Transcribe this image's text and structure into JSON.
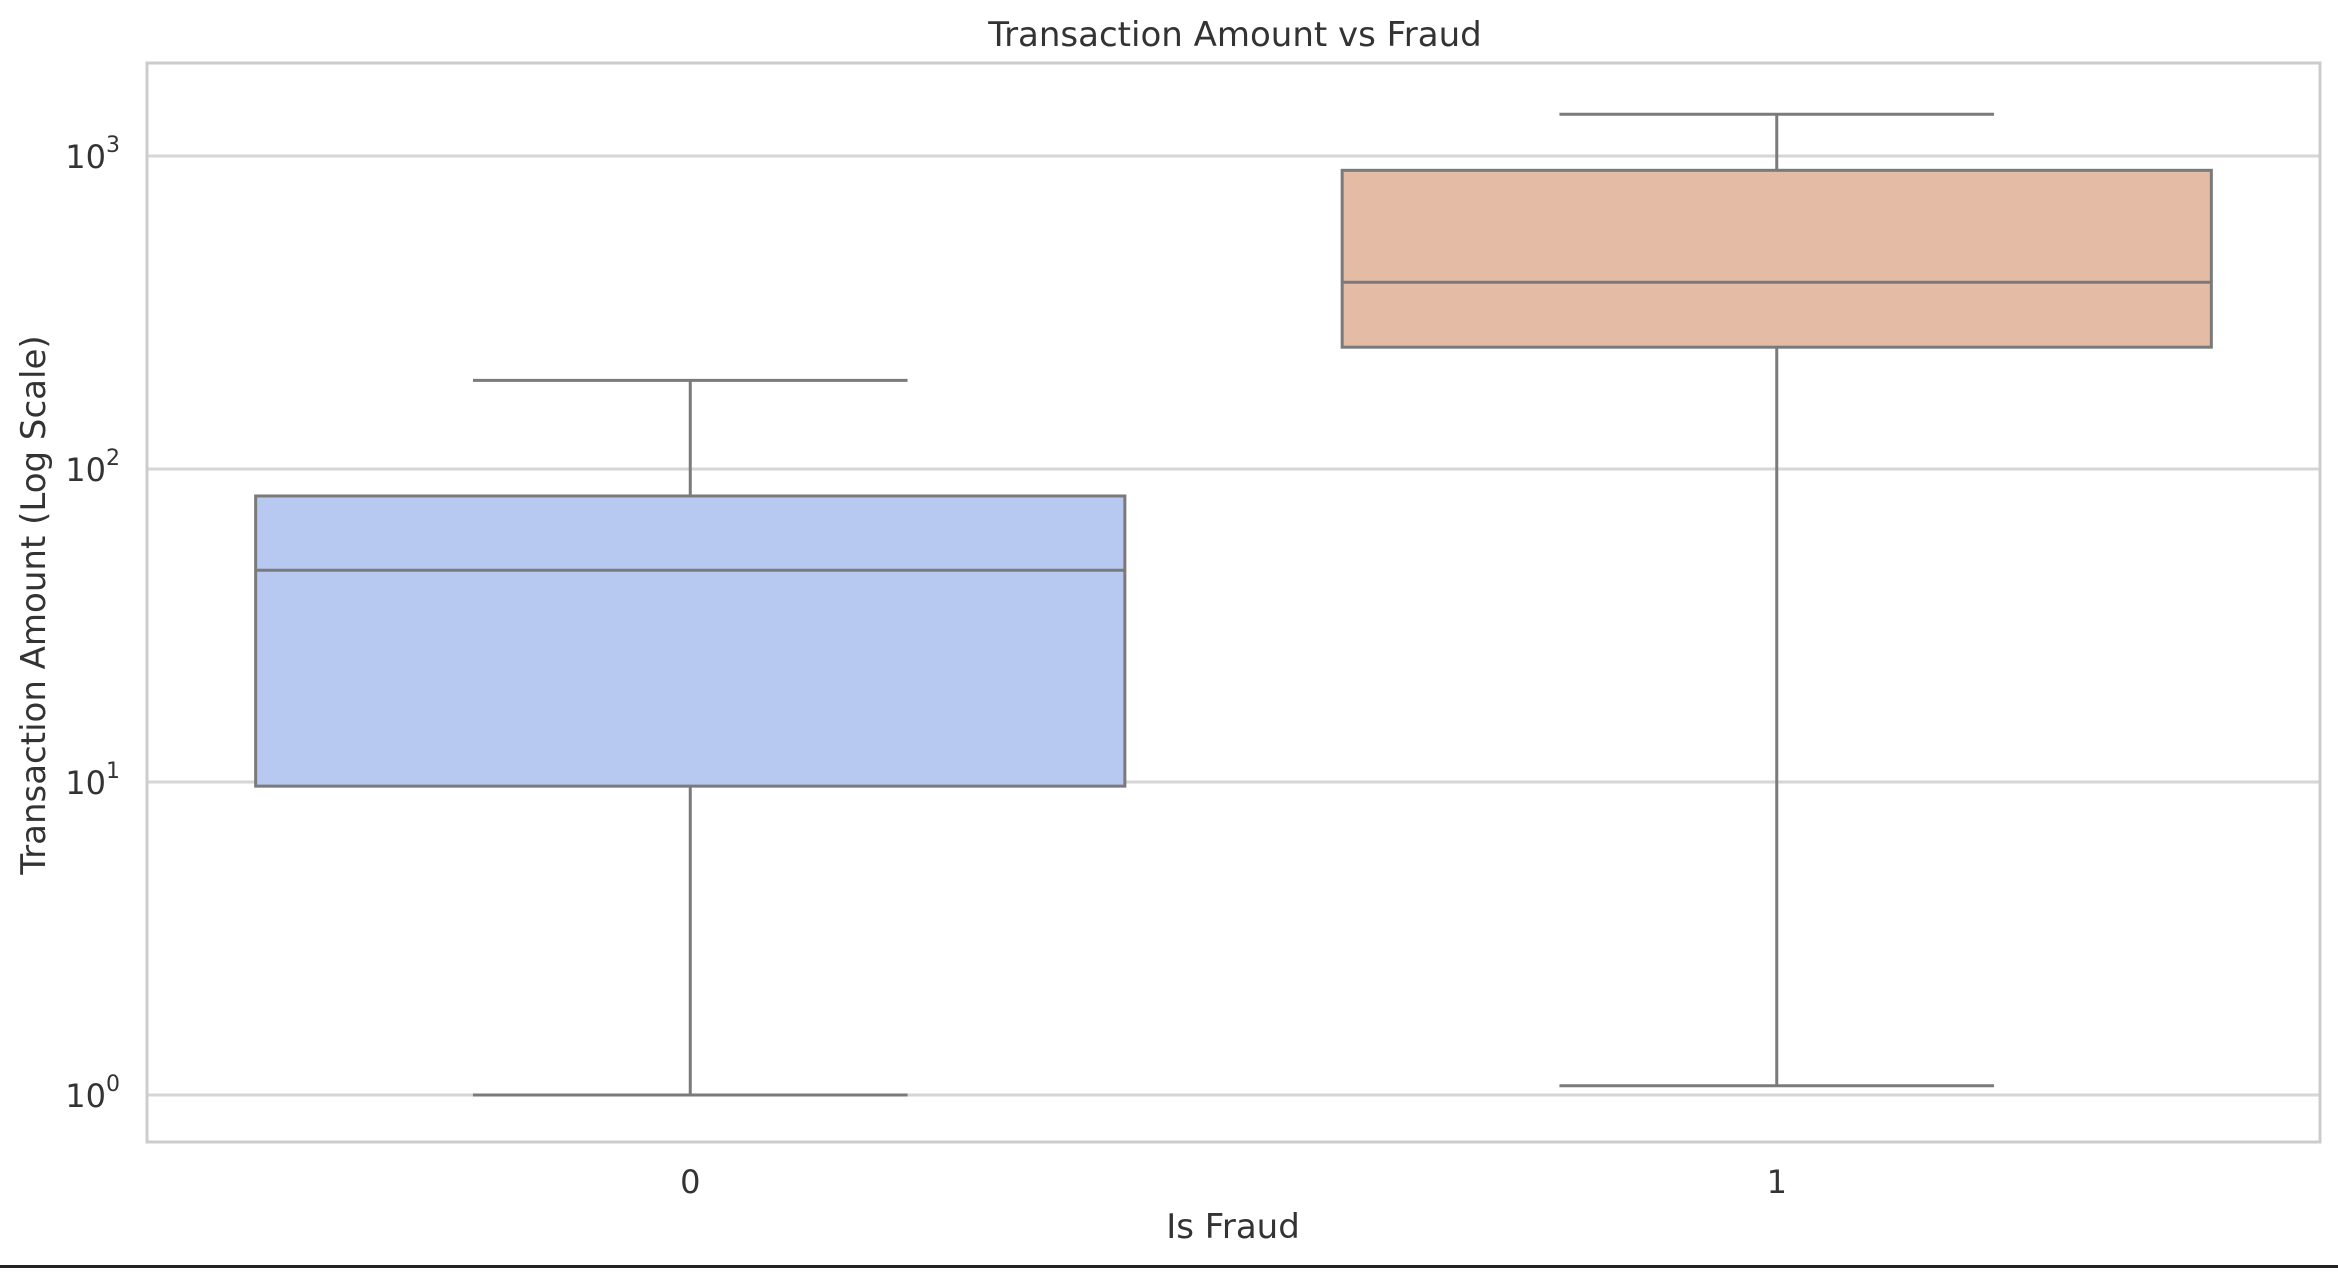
{
  "chart_data": {
    "type": "box",
    "title": "Transaction Amount vs Fraud",
    "xlabel": "Is Fraud",
    "ylabel": "Transaction Amount (Log Scale)",
    "yscale": "log",
    "ylim": [
      0.7,
      2000
    ],
    "yticks": [
      {
        "value": 1,
        "base": "10",
        "exp": "0"
      },
      {
        "value": 10,
        "base": "10",
        "exp": "1"
      },
      {
        "value": 100,
        "base": "10",
        "exp": "2"
      },
      {
        "value": 1000,
        "base": "10",
        "exp": "3"
      }
    ],
    "grid": true,
    "categories": [
      "0",
      "1"
    ],
    "boxes": [
      {
        "category": "0",
        "whisker_low": 1.0,
        "q1": 9.7,
        "median": 47.5,
        "q3": 82,
        "whisker_high": 192,
        "color": "#b7c9f0"
      },
      {
        "category": "1",
        "whisker_low": 1.07,
        "q1": 245,
        "median": 395,
        "q3": 900,
        "whisker_high": 1360,
        "color": "#e4bca6"
      }
    ],
    "colors": {
      "grid": "#d6d6d6",
      "frame": "#cccccc",
      "box_line": "#7a7a7a"
    }
  }
}
